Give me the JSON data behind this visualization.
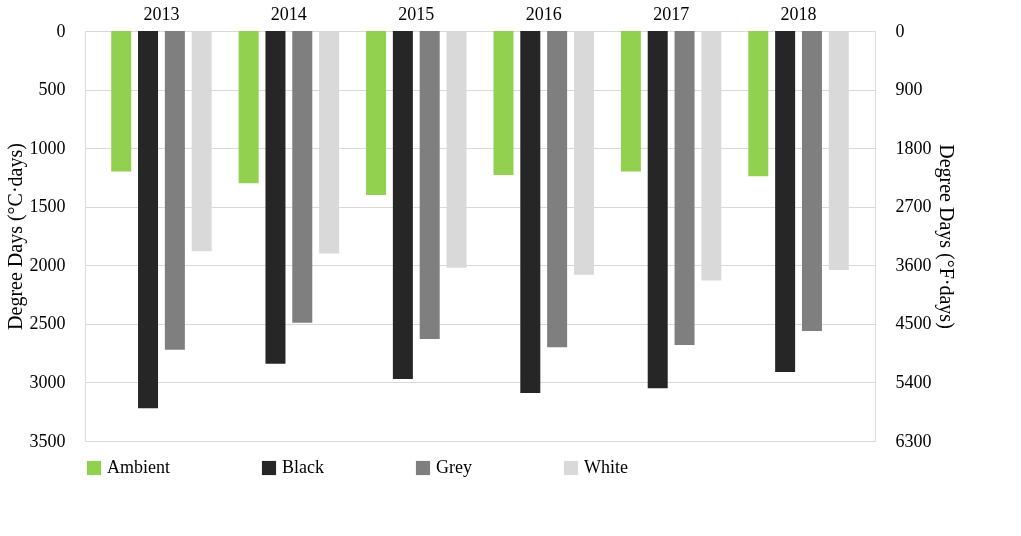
{
  "chart_data": {
    "type": "bar",
    "categories": [
      "2013",
      "2014",
      "2015",
      "2016",
      "2017",
      "2018"
    ],
    "series": [
      {
        "name": "Ambient",
        "color": "#92d050",
        "values": [
          1200,
          1300,
          1400,
          1230,
          1200,
          1240
        ]
      },
      {
        "name": "Black",
        "color": "#262626",
        "values": [
          3220,
          2840,
          2970,
          3090,
          3050,
          2910
        ]
      },
      {
        "name": "Grey",
        "color": "#7f7f7f",
        "values": [
          2720,
          2490,
          2630,
          2700,
          2680,
          2560
        ]
      },
      {
        "name": "White",
        "color": "#d9d9d9",
        "values": [
          1880,
          1900,
          2020,
          2080,
          2130,
          2040
        ]
      }
    ],
    "ylabel": "Degree Days (°C·days)",
    "y2label": "Degree Days (°F·days)",
    "ylim": [
      3500,
      0
    ],
    "yticks": [
      0,
      500,
      1000,
      1500,
      2000,
      2500,
      3000,
      3500
    ],
    "y2lim": [
      6300,
      0
    ],
    "y2ticks": [
      0,
      900,
      1800,
      2700,
      3600,
      4500,
      5400,
      6300
    ],
    "grid": "y",
    "legend": "bottom"
  }
}
